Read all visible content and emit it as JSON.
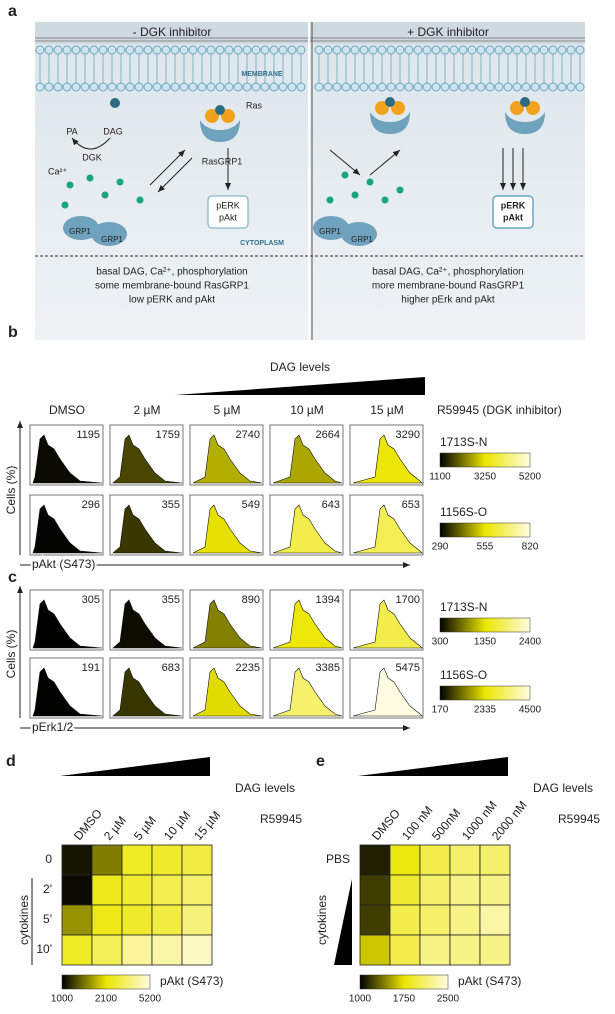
{
  "panel_a": {
    "label": "a",
    "left_title": "- DGK inhibitor",
    "right_title": "+ DGK inhibitor",
    "membrane": "MEMBRANE",
    "cytoplasm": "CYTOPLASM",
    "pa": "PA",
    "dag": "DAG",
    "dgk": "DGK",
    "ras": "Ras",
    "rasgrp1": "RasGRP1",
    "calcium": "Ca²⁺",
    "grp1": "GRP1",
    "perk": "pERK",
    "pakt": "pAkt",
    "left_lines": [
      "basal DAG, Ca²⁺, phosphorylation",
      "some membrane-bound RasGRP1",
      "low pERK and pAkt"
    ],
    "right_lines": [
      "basal DAG, Ca²⁺, phosphorylation",
      "more membrane-bound RasGRP1",
      "higher pErk and pAkt"
    ]
  },
  "panel_b": {
    "label": "b",
    "wedge_label": "DAG levels",
    "conditions": [
      "DMSO",
      "2 µM",
      "5 µM",
      "10 µM",
      "15 µM"
    ],
    "inhibitor": "R59945 (DGK inhibitor)",
    "y_label": "Cells (%)",
    "x_label": "pAkt (S473)",
    "rows": [
      {
        "name": "1713S-N",
        "values": [
          1195,
          1759,
          2740,
          2664,
          3290
        ],
        "scale": [
          1100,
          3250,
          5200
        ]
      },
      {
        "name": "1156S-O",
        "values": [
          296,
          355,
          549,
          643,
          653
        ],
        "scale": [
          290,
          555,
          820
        ]
      }
    ]
  },
  "panel_c": {
    "label": "c",
    "y_label": "Cells (%)",
    "x_label": "pErk1/2",
    "rows": [
      {
        "name": "1713S-N",
        "values": [
          305,
          355,
          890,
          1394,
          1700
        ],
        "scale": [
          300,
          1350,
          2400
        ]
      },
      {
        "name": "1156S-O",
        "values": [
          191,
          683,
          2235,
          3385,
          5475
        ],
        "scale": [
          170,
          2335,
          4500
        ]
      }
    ]
  },
  "panel_d": {
    "label": "d",
    "wedge_label": "DAG levels",
    "conditions": [
      "DMSO",
      "2 µM",
      "5 µM",
      "10 µM",
      "15 µM"
    ],
    "inhibitor": "R59945",
    "row_labels": [
      "0",
      "2'",
      "5'",
      "10'"
    ],
    "y_label": "cytokines",
    "cells": [
      [
        1100,
        1600,
        2600,
        2700,
        3000
      ],
      [
        1050,
        2500,
        2800,
        3200,
        3600
      ],
      [
        1700,
        2400,
        2700,
        3000,
        3800
      ],
      [
        2600,
        3300,
        4200,
        4400,
        4800
      ]
    ],
    "scale": [
      1000,
      2100,
      5200
    ],
    "scale_label": "pAkt (S473)"
  },
  "panel_e": {
    "label": "e",
    "wedge_label": "DAG levels",
    "conditions": [
      "DMSO",
      "100 nM",
      "500nM",
      "1000 nM",
      "2000 nM"
    ],
    "inhibitor": "R59945",
    "row_labels": [
      "PBS"
    ],
    "y_label": "cytokines",
    "cells": [
      [
        1100,
        1800,
        2000,
        2100,
        2100
      ],
      [
        1200,
        1900,
        2100,
        2200,
        2200
      ],
      [
        1200,
        2000,
        2100,
        2200,
        2300
      ],
      [
        1650,
        2000,
        2200,
        2200,
        2200
      ]
    ],
    "scale": [
      1000,
      1750,
      2500
    ],
    "scale_label": "pAkt (S473)"
  }
}
